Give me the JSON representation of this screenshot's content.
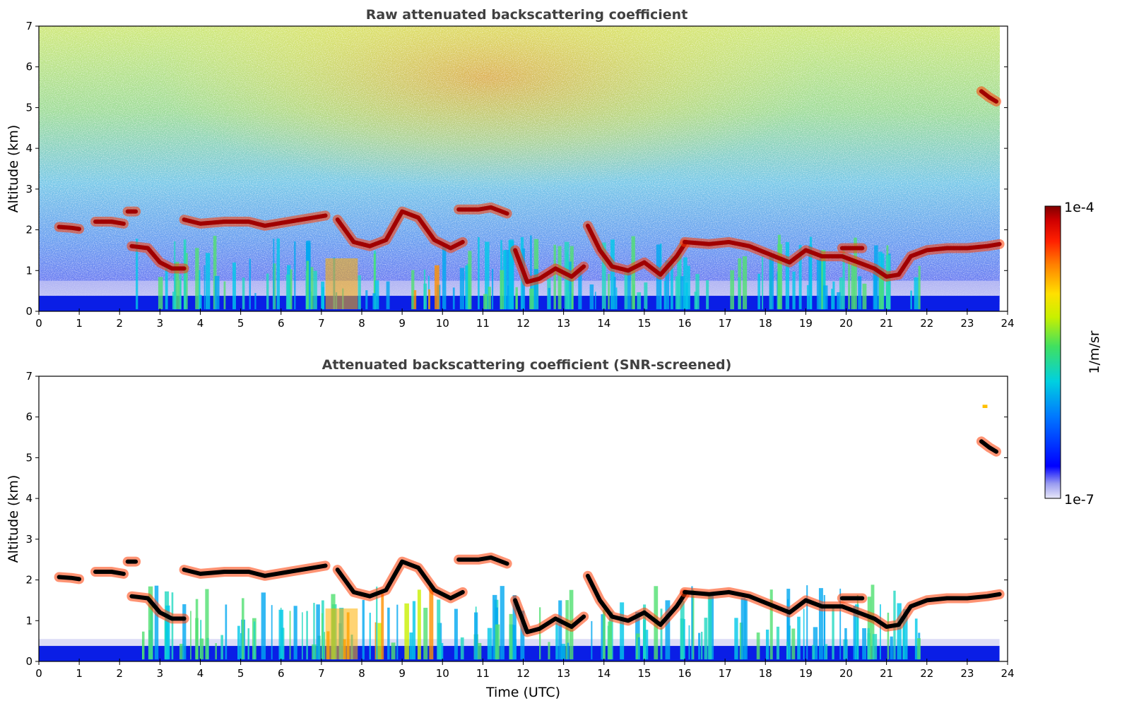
{
  "chart_data": [
    {
      "type": "heatmap",
      "title": "Raw attenuated backscattering coefficient",
      "xlabel": "",
      "ylabel": "Altitude (km)",
      "xlim": [
        0,
        24
      ],
      "ylim": [
        0,
        7
      ],
      "x_ticks": [
        "0",
        "1",
        "2",
        "3",
        "4",
        "5",
        "6",
        "7",
        "8",
        "9",
        "10",
        "11",
        "12",
        "13",
        "14",
        "15",
        "16",
        "17",
        "18",
        "19",
        "20",
        "21",
        "22",
        "23",
        "24"
      ],
      "y_ticks": [
        "0",
        "1",
        "2",
        "3",
        "4",
        "5",
        "6",
        "7"
      ],
      "data_end_hour": 23.8,
      "layers": [
        {
          "name": "near-surface layer",
          "x": [
            0,
            23.8
          ],
          "altitude_km": [
            0,
            0.4
          ]
        },
        {
          "name": "cloud layer",
          "x": [
            0.5,
            1.0
          ],
          "altitude_km": 2.05
        },
        {
          "name": "cloud layer",
          "x": [
            1.5,
            2.0
          ],
          "altitude_km": 2.2
        },
        {
          "name": "cloud layer",
          "x": [
            2.3,
            3.6
          ],
          "altitude_km": [
            1.6,
            1.0
          ]
        },
        {
          "name": "cloud layer",
          "x": [
            3.6,
            7.1
          ],
          "altitude_km": [
            2.2,
            2.3
          ]
        },
        {
          "name": "cloud layer",
          "x": [
            7.1,
            13.5
          ],
          "altitude_km": [
            0.8,
            2.55
          ]
        },
        {
          "name": "cloud layer",
          "x": [
            13.5,
            23.8
          ],
          "altitude_km": [
            0.8,
            1.8
          ]
        },
        {
          "name": "high cloud",
          "x": [
            23.35,
            23.75
          ],
          "altitude_km": [
            5.1,
            5.4
          ]
        }
      ]
    },
    {
      "type": "heatmap",
      "title": "Attenuated backscattering coefficient (SNR-screened)",
      "xlabel": "Time (UTC)",
      "ylabel": "Altitude (km)",
      "xlim": [
        0,
        24
      ],
      "ylim": [
        0,
        7
      ],
      "x_ticks": [
        "0",
        "1",
        "2",
        "3",
        "4",
        "5",
        "6",
        "7",
        "8",
        "9",
        "10",
        "11",
        "12",
        "13",
        "14",
        "15",
        "16",
        "17",
        "18",
        "19",
        "20",
        "21",
        "22",
        "23",
        "24"
      ],
      "y_ticks": [
        "0",
        "1",
        "2",
        "3",
        "4",
        "5",
        "6",
        "7"
      ]
    }
  ],
  "colorbar": {
    "label": "1/m/sr",
    "max_label": "1e-4",
    "min_label": "1e-7",
    "scale": "log",
    "colormap": [
      "#e8e8f8",
      "#9a9cf0",
      "#0000ff",
      "#0078ff",
      "#00d0e0",
      "#40e060",
      "#c8f000",
      "#ffe000",
      "#ff8000",
      "#ff2000",
      "#d00000",
      "#800000"
    ],
    "screened_saturation_color": "#000000"
  }
}
